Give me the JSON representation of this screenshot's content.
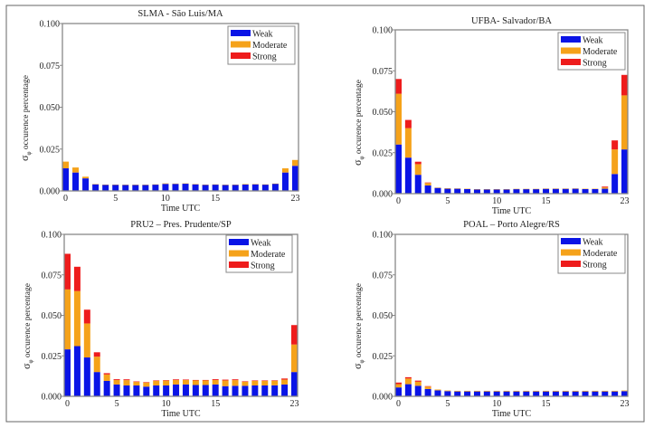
{
  "colors": {
    "weak": "#0a14e6",
    "moderate": "#f5a21a",
    "strong": "#ee1c1c",
    "axis": "#888888",
    "frame": "#666666"
  },
  "chart_data": [
    {
      "type": "bar",
      "stacked": true,
      "title": "SLMA  - São Luis/MA",
      "xlabel": "Time  UTC",
      "ylabel": {
        "symbol": "σ",
        "subscript": "φ",
        "text": "occurence percentage"
      },
      "x": [
        0,
        1,
        2,
        3,
        4,
        5,
        6,
        7,
        8,
        9,
        10,
        11,
        12,
        13,
        14,
        15,
        16,
        17,
        18,
        19,
        20,
        21,
        22,
        23
      ],
      "xticks": [
        "0",
        "5",
        "10",
        "15",
        "23"
      ],
      "yticks": [
        "0.000",
        "0.025",
        "0.050",
        "0.075",
        "0.100"
      ],
      "ylim": [
        0,
        0.1
      ],
      "legend": "top-right",
      "series": [
        {
          "name": "Weak",
          "values": [
            0.0135,
            0.011,
            0.0075,
            0.004,
            0.0037,
            0.0037,
            0.0036,
            0.0036,
            0.0036,
            0.0038,
            0.0042,
            0.0042,
            0.0043,
            0.004,
            0.0037,
            0.0038,
            0.0036,
            0.0037,
            0.0038,
            0.004,
            0.0038,
            0.0043,
            0.011,
            0.015
          ]
        },
        {
          "name": "Moderate",
          "values": [
            0.004,
            0.003,
            0.001,
            0.0001,
            0.0001,
            0.0001,
            0.0001,
            0.0001,
            0.0001,
            0.0001,
            0.0003,
            0.0002,
            0.0002,
            0.0001,
            0.0001,
            0.0001,
            0.0001,
            0.0001,
            0.0003,
            0.0001,
            0.0001,
            0.0001,
            0.0025,
            0.0035
          ]
        },
        {
          "name": "Strong",
          "values": [
            0,
            0,
            0,
            0,
            0,
            0,
            0,
            0,
            0,
            0,
            0,
            0,
            0,
            0,
            0,
            0,
            0,
            0,
            0,
            0,
            0,
            0,
            0,
            0
          ]
        }
      ]
    },
    {
      "type": "bar",
      "stacked": true,
      "title": "UFBA- Salvador/BA",
      "xlabel": "Time  UTC",
      "ylabel": {
        "symbol": "σ",
        "subscript": "φ",
        "text": "occurence percentage"
      },
      "x": [
        0,
        1,
        2,
        3,
        4,
        5,
        6,
        7,
        8,
        9,
        10,
        11,
        12,
        13,
        14,
        15,
        16,
        17,
        18,
        19,
        20,
        21,
        22,
        23
      ],
      "xticks": [
        "0",
        "5",
        "10",
        "15",
        "23"
      ],
      "yticks": [
        "0.000",
        "0.025",
        "0.050",
        "0.075",
        "0.100"
      ],
      "ylim": [
        0,
        0.1
      ],
      "legend": "top-right",
      "series": [
        {
          "name": "Weak",
          "values": [
            0.03,
            0.022,
            0.0115,
            0.005,
            0.0035,
            0.003,
            0.003,
            0.0028,
            0.0026,
            0.0026,
            0.0026,
            0.0026,
            0.0028,
            0.0028,
            0.0028,
            0.003,
            0.003,
            0.003,
            0.003,
            0.0028,
            0.0028,
            0.003,
            0.012,
            0.027
          ]
        },
        {
          "name": "Moderate",
          "values": [
            0.031,
            0.018,
            0.0065,
            0.0015,
            0.0002,
            0.0003,
            0.0002,
            0.0002,
            0.0001,
            0.0001,
            0.0001,
            0.0001,
            0.0001,
            0.0001,
            0.0001,
            0.0001,
            0.0001,
            0.0001,
            0.0002,
            0.0002,
            0.0002,
            0.0008,
            0.015,
            0.033
          ]
        },
        {
          "name": "Strong",
          "values": [
            0.009,
            0.005,
            0.0015,
            0.0003,
            0,
            0,
            0,
            0,
            0,
            0,
            0,
            0,
            0,
            0,
            0,
            0,
            0,
            0,
            0,
            0,
            0,
            0.0005,
            0.0055,
            0.0125
          ]
        }
      ]
    },
    {
      "type": "bar",
      "stacked": true,
      "title": "PRU2 – Pres. Prudente/SP",
      "xlabel": "Time  UTC",
      "ylabel": {
        "symbol": "σ",
        "subscript": "φ",
        "text": "occurence percentage"
      },
      "x": [
        0,
        1,
        2,
        3,
        4,
        5,
        6,
        7,
        8,
        9,
        10,
        11,
        12,
        13,
        14,
        15,
        16,
        17,
        18,
        19,
        20,
        21,
        22,
        23
      ],
      "xticks": [
        "0",
        "5",
        "10",
        "15",
        "23"
      ],
      "yticks": [
        "0.000",
        "0.025",
        "0.050",
        "0.075",
        "0.100"
      ],
      "ylim": [
        0,
        0.1
      ],
      "legend": "top-right",
      "series": [
        {
          "name": "Weak",
          "values": [
            0.029,
            0.031,
            0.024,
            0.015,
            0.0095,
            0.0073,
            0.0067,
            0.0067,
            0.006,
            0.0067,
            0.0067,
            0.0073,
            0.0073,
            0.007,
            0.007,
            0.0073,
            0.0063,
            0.0065,
            0.0065,
            0.0067,
            0.0067,
            0.0068,
            0.0073,
            0.015
          ]
        },
        {
          "name": "Moderate",
          "values": [
            0.037,
            0.034,
            0.021,
            0.0095,
            0.004,
            0.0028,
            0.0033,
            0.0022,
            0.0025,
            0.0028,
            0.003,
            0.0028,
            0.0028,
            0.0028,
            0.0028,
            0.0028,
            0.0035,
            0.0035,
            0.0025,
            0.0028,
            0.0028,
            0.0028,
            0.003,
            0.017
          ]
        },
        {
          "name": "Strong",
          "values": [
            0.022,
            0.015,
            0.0085,
            0.0027,
            0.0008,
            0.0005,
            0.0005,
            0.0003,
            0.0003,
            0.0003,
            0.0003,
            0.0004,
            0.0003,
            0.0003,
            0.0003,
            0.0005,
            0.0005,
            0.0005,
            0.0003,
            0.0003,
            0.0003,
            0.0003,
            0.0007,
            0.012
          ]
        }
      ]
    },
    {
      "type": "bar",
      "stacked": true,
      "title": "POAL – Porto Alegre/RS",
      "xlabel": "Time  UTC",
      "ylabel": {
        "symbol": "σ",
        "subscript": "φ",
        "text": "occurence percentage"
      },
      "x": [
        0,
        1,
        2,
        3,
        4,
        5,
        6,
        7,
        8,
        9,
        10,
        11,
        12,
        13,
        14,
        15,
        16,
        17,
        18,
        19,
        20,
        21,
        22,
        23
      ],
      "xticks": [
        "0",
        "5",
        "10",
        "15",
        "23"
      ],
      "yticks": [
        "0.000",
        "0.025",
        "0.050",
        "0.075",
        "0.100"
      ],
      "ylim": [
        0,
        0.1
      ],
      "legend": "top-right",
      "series": [
        {
          "name": "Weak",
          "values": [
            0.0055,
            0.0075,
            0.0065,
            0.0045,
            0.0037,
            0.0032,
            0.003,
            0.003,
            0.003,
            0.003,
            0.003,
            0.003,
            0.003,
            0.003,
            0.003,
            0.003,
            0.003,
            0.003,
            0.003,
            0.003,
            0.003,
            0.003,
            0.003,
            0.0032
          ]
        },
        {
          "name": "Moderate",
          "values": [
            0.002,
            0.0035,
            0.0025,
            0.0015,
            0.0005,
            0.0004,
            0.0004,
            0.0004,
            0.0004,
            0.0004,
            0.0004,
            0.0004,
            0.0004,
            0.0004,
            0.0004,
            0.0004,
            0.0004,
            0.0004,
            0.0004,
            0.0004,
            0.0004,
            0.0004,
            0.0004,
            0.0004
          ]
        },
        {
          "name": "Strong",
          "values": [
            0.001,
            0.0008,
            0.0007,
            0.0003,
            0,
            0,
            0,
            0,
            0,
            0,
            0,
            0,
            0,
            0,
            0,
            0,
            0,
            0,
            0,
            0,
            0,
            0,
            0,
            0
          ]
        }
      ]
    }
  ]
}
